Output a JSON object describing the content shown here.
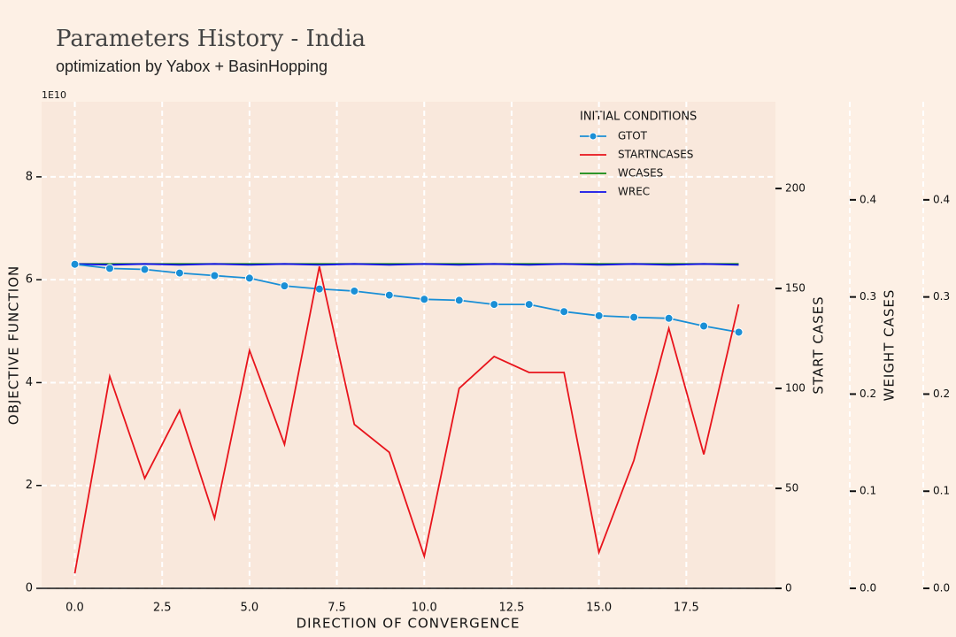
{
  "chart_data": {
    "type": "line",
    "title": "Parameters History - India",
    "subtitle": "optimization by Yabox + BasinHopping",
    "x_label": "DIRECTION OF CONVERGENCE",
    "y_label": "OBJECTIVE FUNCTION",
    "y_offset_label": "1E10",
    "y2_label": "START CASES",
    "y3_label": "WEIGHT CASES",
    "legend_title": "INITIAL CONDITIONS",
    "legend_position": "upper right",
    "grid": true,
    "x": [
      0,
      1,
      2,
      3,
      4,
      5,
      6,
      7,
      8,
      9,
      10,
      11,
      12,
      13,
      14,
      15,
      16,
      17,
      18,
      19
    ],
    "xlim": [
      -0.95,
      20.05
    ],
    "xticks": [
      {
        "value": 0,
        "label": "0.0"
      },
      {
        "value": 2.5,
        "label": "2.5"
      },
      {
        "value": 5,
        "label": "5.0"
      },
      {
        "value": 7.5,
        "label": "7.5"
      },
      {
        "value": 10,
        "label": "10.0"
      },
      {
        "value": 12.5,
        "label": "12.5"
      },
      {
        "value": 15,
        "label": "15.0"
      },
      {
        "value": 17.5,
        "label": "17.5"
      }
    ],
    "ylim": [
      0,
      9.46
    ],
    "yticks": [
      0,
      2,
      4,
      6,
      8
    ],
    "y2lim": [
      0,
      243.4
    ],
    "y2ticks": [
      0,
      50,
      100,
      150,
      200
    ],
    "y3lim": [
      0,
      0.501
    ],
    "y3ticks": [
      {
        "value": 0,
        "label": "0.0"
      },
      {
        "value": 0.1,
        "label": "0.1"
      },
      {
        "value": 0.2,
        "label": "0.2"
      },
      {
        "value": 0.3,
        "label": "0.3"
      },
      {
        "value": 0.4,
        "label": "0.4"
      }
    ],
    "y4lim": [
      0,
      0.501
    ],
    "y4ticks": [
      {
        "value": 0,
        "label": "0.0"
      },
      {
        "value": 0.1,
        "label": "0.1"
      },
      {
        "value": 0.2,
        "label": "0.2"
      },
      {
        "value": 0.3,
        "label": "0.3"
      },
      {
        "value": 0.4,
        "label": "0.4"
      }
    ],
    "series": [
      {
        "name": "gtot",
        "color": "#1a8fd6",
        "markers": true,
        "values": [
          6.3,
          6.22,
          6.2,
          6.13,
          6.08,
          6.03,
          5.88,
          5.82,
          5.78,
          5.7,
          5.62,
          5.6,
          5.52,
          5.52,
          5.38,
          5.3,
          5.27,
          5.25,
          5.1,
          4.98
        ]
      },
      {
        "name": "startncases",
        "color": "#e8141c",
        "axis": "y2",
        "values": [
          7.5,
          106,
          55,
          89,
          35,
          119,
          72,
          161,
          82,
          68,
          16,
          100,
          116,
          108,
          108,
          18,
          64,
          130,
          67,
          142
        ]
      },
      {
        "name": "wcases",
        "color": "#128a12",
        "axis": "y3",
        "values": [
          0.334,
          0.334,
          0.334,
          0.334,
          0.334,
          0.334,
          0.334,
          0.334,
          0.334,
          0.334,
          0.334,
          0.334,
          0.334,
          0.334,
          0.334,
          0.334,
          0.334,
          0.334,
          0.334,
          0.334
        ]
      },
      {
        "name": "wrec",
        "color": "#1010e8",
        "axis": "y4",
        "values": [
          0.334,
          0.333,
          0.334,
          0.333,
          0.334,
          0.333,
          0.334,
          0.333,
          0.334,
          0.333,
          0.334,
          0.333,
          0.334,
          0.333,
          0.334,
          0.333,
          0.334,
          0.333,
          0.334,
          0.333
        ]
      }
    ]
  }
}
